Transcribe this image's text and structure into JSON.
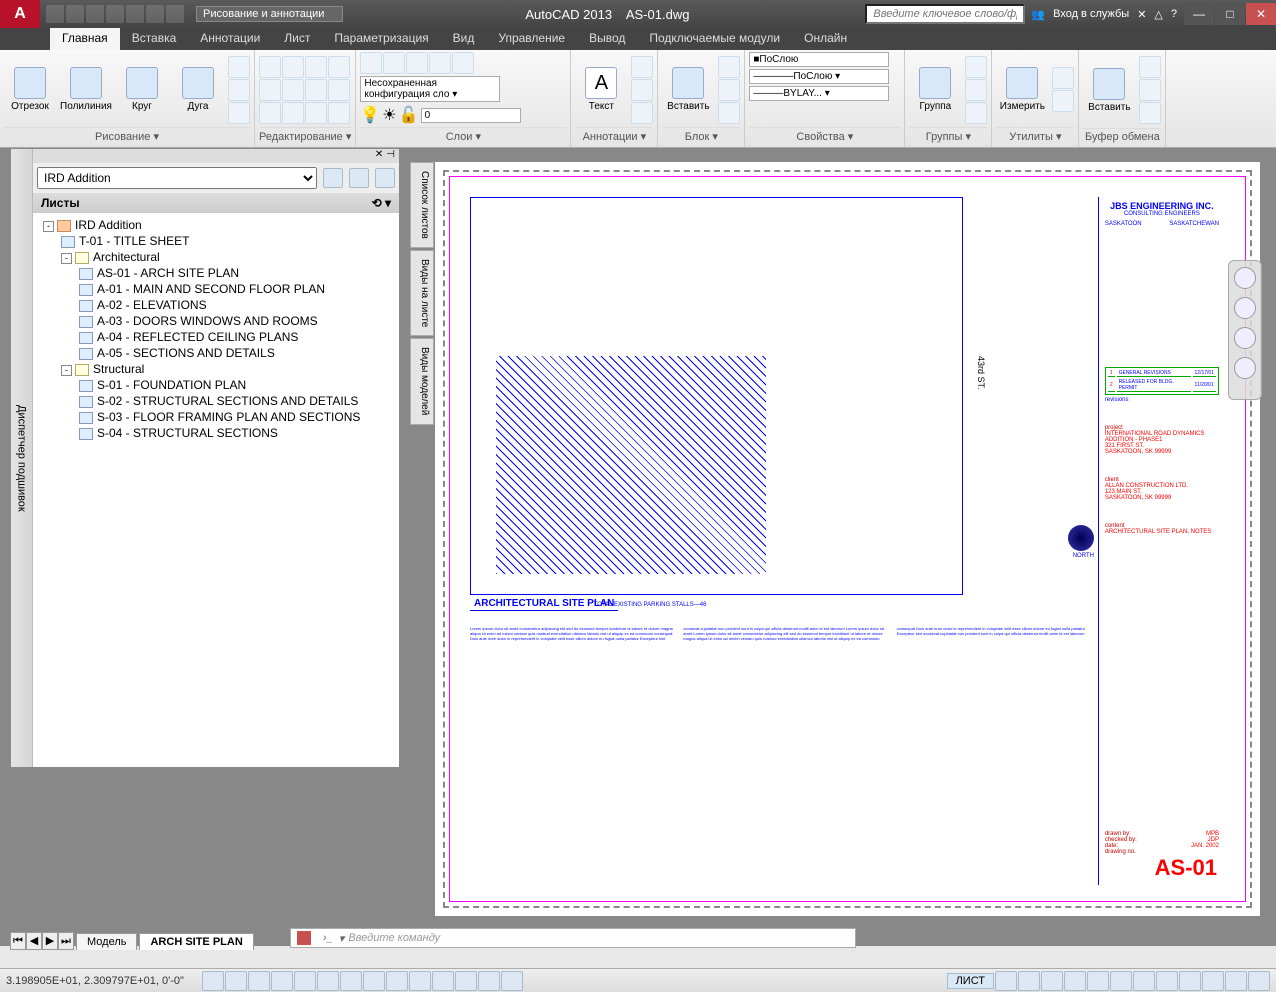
{
  "titlebar": {
    "workspace": "Рисование и аннотации",
    "app": "AutoCAD 2013",
    "file": "AS-01.dwg",
    "search_placeholder": "Введите ключевое слово/фразу",
    "signin": "Вход в службы"
  },
  "ribbon": {
    "tabs": [
      "Главная",
      "Вставка",
      "Аннотации",
      "Лист",
      "Параметризация",
      "Вид",
      "Управление",
      "Вывод",
      "Подключаемые модули",
      "Онлайн"
    ],
    "active_tab": 0,
    "panels": {
      "draw": {
        "title": "Рисование ▾",
        "btns": [
          "Отрезок",
          "Полилиния",
          "Круг",
          "Дуга"
        ]
      },
      "edit": {
        "title": "Редактирование ▾"
      },
      "layers": {
        "title": "Слои ▾",
        "config": "Несохраненная конфигурация сло ▾",
        "layer": "0"
      },
      "annot": {
        "title": "Аннотации ▾",
        "btn": "Текст"
      },
      "block": {
        "title": "Блок ▾",
        "btn": "Вставить"
      },
      "props": {
        "title": "Свойства ▾",
        "color": "■ПоСлою",
        "ltype": "————ПоСлою ▾",
        "lweight": "———BYLAY... ▾"
      },
      "groups": {
        "title": "Группы ▾",
        "btn": "Группа"
      },
      "utils": {
        "title": "Утилиты ▾",
        "btn": "Измерить"
      },
      "clip": {
        "title": "Буфер обмена",
        "btn": "Вставить"
      }
    }
  },
  "ssm": {
    "title_bar": "Диспетчер подшивок",
    "set_select": "IRD Addition",
    "section": "Листы",
    "tree": [
      {
        "l": 0,
        "t": "set",
        "exp": "-",
        "label": "IRD Addition"
      },
      {
        "l": 1,
        "t": "sheet",
        "label": "T-01 - TITLE SHEET"
      },
      {
        "l": 1,
        "t": "folder",
        "exp": "-",
        "label": "Architectural"
      },
      {
        "l": 2,
        "t": "sheet",
        "label": "AS-01 - ARCH SITE PLAN"
      },
      {
        "l": 2,
        "t": "sheet",
        "label": "A-01 - MAIN AND SECOND FLOOR PLAN"
      },
      {
        "l": 2,
        "t": "sheet",
        "label": "A-02 - ELEVATIONS"
      },
      {
        "l": 2,
        "t": "sheet",
        "label": "A-03 - DOORS WINDOWS AND ROOMS"
      },
      {
        "l": 2,
        "t": "sheet",
        "label": "A-04 - REFLECTED CEILING PLANS"
      },
      {
        "l": 2,
        "t": "sheet",
        "label": "A-05 - SECTIONS AND DETAILS"
      },
      {
        "l": 1,
        "t": "folder",
        "exp": "-",
        "label": "Structural"
      },
      {
        "l": 2,
        "t": "sheet",
        "label": "S-01 - FOUNDATION PLAN"
      },
      {
        "l": 2,
        "t": "sheet",
        "label": "S-02 - STRUCTURAL SECTIONS AND DETAILS"
      },
      {
        "l": 2,
        "t": "sheet",
        "label": "S-03 - FLOOR FRAMING PLAN AND SECTIONS"
      },
      {
        "l": 2,
        "t": "sheet",
        "label": "S-04 - STRUCTURAL SECTIONS"
      }
    ]
  },
  "vp_tabs": [
    "Список листов",
    "Виды на листе",
    "Виды моделей"
  ],
  "drawing": {
    "street": "43rd ST.",
    "plan_title": "ARCHITECTURAL SITE PLAN",
    "parking": "TOTAL EXISTING PARKING STALLS—46",
    "north": "NORTH",
    "tb": {
      "firm": "JBS ENGINEERING INC.",
      "sub": "CONSULTING ENGINEERS",
      "city": "SASKATOON",
      "prov": "SASKATCHEWAN",
      "revisions_hdr": "revisions",
      "rev1": {
        "no": "1",
        "desc": "GENERAL REVISIONS",
        "date": "12/17/01"
      },
      "rev2": {
        "no": "2",
        "desc": "RELEASED FOR BLDG. PERMIT",
        "date": "11/20/01"
      },
      "project_l": "project",
      "project": "INTERNATIONAL ROAD DYNAMICS ADDITION - PHASE1\n321 FIRST ST.\nSASKATOON, SK 99999",
      "client_l": "client",
      "client": "ALLAN CONSTRUCTION LTD.\n123 MAIN ST.\nSASKATOON, SK 99999",
      "content_l": "content",
      "content": "ARCHITECTURAL SITE PLAN, NOTES",
      "drawn_l": "drawn by:",
      "drawn": "MPB",
      "checked_l": "checked by:",
      "checked": "JDP",
      "date_l": "date:",
      "date": "JAN. 2002",
      "dwgno_l": "drawing no.",
      "sheet": "AS-01"
    }
  },
  "layout_tabs": {
    "tabs": [
      "Модель",
      "ARCH SITE PLAN"
    ],
    "active": 1
  },
  "cmdline": {
    "placeholder": "Введите команду"
  },
  "statusbar": {
    "coords": "3.198905E+01, 2.309797E+01, 0'-0\"",
    "label": "ЛИСТ"
  }
}
